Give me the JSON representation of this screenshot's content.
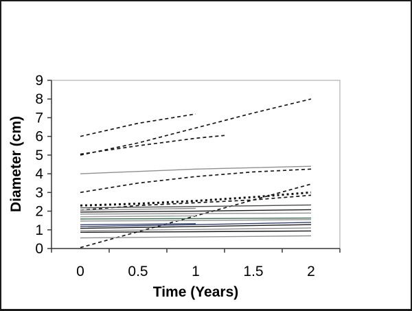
{
  "page": {
    "background": "#ffffff",
    "outer_border_color": "#1a1a1a"
  },
  "chart_data": {
    "type": "line",
    "title": "",
    "xlabel": "Time (Years)",
    "ylabel": "Diameter (cm)",
    "x_ticks": [
      0,
      0.5,
      1,
      1.5,
      2
    ],
    "x_tick_labels": [
      "0",
      "0.5",
      "1",
      "1.5",
      "2"
    ],
    "y_ticks": [
      0,
      1,
      2,
      3,
      4,
      5,
      6,
      7,
      8,
      9
    ],
    "y_tick_labels": [
      "0",
      "1",
      "2",
      "3",
      "4",
      "5",
      "6",
      "7",
      "8",
      "9"
    ],
    "xlim": [
      -0.25,
      2.25
    ],
    "ylim": [
      0,
      9
    ],
    "grid": false,
    "legend": "none",
    "axis_color": "#3a3a3a",
    "plot_border_color": "#b0b0b0",
    "tick_label_color": "#000000",
    "series_colors": {
      "dashed_black": "#151515",
      "solid_gray": "#8f8f8f",
      "solid_black": "#1a1a1a",
      "solid_navy": "#33406e",
      "solid_green": "#3a6b52"
    },
    "series": [
      {
        "id": "dashed-1",
        "style": "dashed",
        "color": "#151515",
        "points": [
          [
            0,
            6.0
          ],
          [
            0.5,
            6.7
          ],
          [
            1,
            7.2
          ]
        ]
      },
      {
        "id": "dashed-2",
        "style": "dashed",
        "color": "#151515",
        "points": [
          [
            0,
            5.0
          ],
          [
            0.5,
            5.65
          ],
          [
            1,
            6.45
          ],
          [
            1.5,
            7.25
          ],
          [
            2,
            8.0
          ]
        ]
      },
      {
        "id": "dashed-3",
        "style": "dashed",
        "color": "#151515",
        "points": [
          [
            0,
            5.05
          ],
          [
            0.5,
            5.5
          ],
          [
            1,
            5.9
          ],
          [
            1.25,
            6.05
          ]
        ]
      },
      {
        "id": "dashed-4",
        "style": "dashed",
        "color": "#151515",
        "points": [
          [
            0,
            3.0
          ],
          [
            0.5,
            3.5
          ],
          [
            1,
            3.85
          ],
          [
            1.5,
            4.1
          ],
          [
            2,
            4.25
          ]
        ]
      },
      {
        "id": "dashed-5",
        "style": "dashed",
        "color": "#151515",
        "points": [
          [
            0,
            2.05
          ],
          [
            0.5,
            2.3
          ],
          [
            1,
            2.45
          ],
          [
            1.5,
            2.6
          ],
          [
            2,
            2.85
          ]
        ]
      },
      {
        "id": "dashed-6",
        "style": "dashed",
        "color": "#151515",
        "points": [
          [
            0,
            0.05
          ],
          [
            0.5,
            0.9
          ],
          [
            1,
            1.75
          ],
          [
            1.5,
            2.6
          ],
          [
            2,
            3.45
          ]
        ]
      },
      {
        "id": "bold-dotted-1",
        "style": "bold-dotted",
        "color": "#111111",
        "points": [
          [
            0,
            2.3
          ],
          [
            0.5,
            2.4
          ],
          [
            1,
            2.55
          ],
          [
            1.5,
            2.75
          ],
          [
            2,
            3.0
          ]
        ]
      },
      {
        "id": "solid-1",
        "style": "solid",
        "color": "#8f8f8f",
        "points": [
          [
            0,
            4.0
          ],
          [
            1,
            4.25
          ],
          [
            2,
            4.4
          ]
        ]
      },
      {
        "id": "solid-2",
        "style": "solid",
        "color": "#4a4a4a",
        "points": [
          [
            0,
            2.18
          ],
          [
            1,
            2.25
          ],
          [
            2,
            2.33
          ]
        ]
      },
      {
        "id": "solid-3",
        "style": "solid",
        "color": "#8f8f8f",
        "points": [
          [
            0,
            2.05
          ],
          [
            1,
            2.15
          ]
        ]
      },
      {
        "id": "solid-4",
        "style": "solid",
        "color": "#1a1a1a",
        "points": [
          [
            0,
            1.95
          ],
          [
            1,
            2.0
          ],
          [
            2,
            2.08
          ]
        ]
      },
      {
        "id": "solid-5",
        "style": "solid",
        "color": "#8f8f8f",
        "points": [
          [
            0,
            1.84
          ],
          [
            1,
            1.87
          ],
          [
            2,
            1.9
          ]
        ]
      },
      {
        "id": "solid-6",
        "style": "solid",
        "color": "#9a9a9a",
        "points": [
          [
            0,
            1.7
          ],
          [
            1,
            1.75
          ]
        ]
      },
      {
        "id": "solid-7",
        "style": "solid",
        "color": "#3a6b52",
        "points": [
          [
            0,
            1.58
          ],
          [
            1,
            1.6
          ],
          [
            2,
            1.63
          ]
        ]
      },
      {
        "id": "solid-8",
        "style": "solid",
        "color": "#8f8f8f",
        "points": [
          [
            0,
            1.47
          ],
          [
            1,
            1.5
          ],
          [
            2,
            1.55
          ]
        ]
      },
      {
        "id": "solid-9",
        "style": "solid",
        "color": "#33406e",
        "points": [
          [
            0,
            1.27
          ],
          [
            1,
            1.33
          ]
        ]
      },
      {
        "id": "solid-10",
        "style": "solid",
        "color": "#33406e",
        "points": [
          [
            0,
            1.17
          ],
          [
            1,
            1.28
          ],
          [
            2,
            1.4
          ]
        ]
      },
      {
        "id": "solid-11",
        "style": "solid",
        "color": "#1a1a1a",
        "points": [
          [
            0,
            1.08
          ],
          [
            1,
            1.18
          ],
          [
            2,
            1.28
          ]
        ]
      },
      {
        "id": "solid-12",
        "style": "solid",
        "color": "#8f8f8f",
        "points": [
          [
            0,
            0.95
          ],
          [
            1,
            1.02
          ],
          [
            2,
            1.1
          ]
        ]
      },
      {
        "id": "solid-13",
        "style": "solid",
        "color": "#1a1a1a",
        "points": [
          [
            0,
            0.87
          ],
          [
            1,
            0.9
          ],
          [
            2,
            0.94
          ]
        ]
      },
      {
        "id": "solid-14",
        "style": "solid",
        "color": "#8f8f8f",
        "points": [
          [
            0,
            0.57
          ],
          [
            1,
            0.62
          ],
          [
            2,
            0.68
          ]
        ]
      }
    ]
  }
}
